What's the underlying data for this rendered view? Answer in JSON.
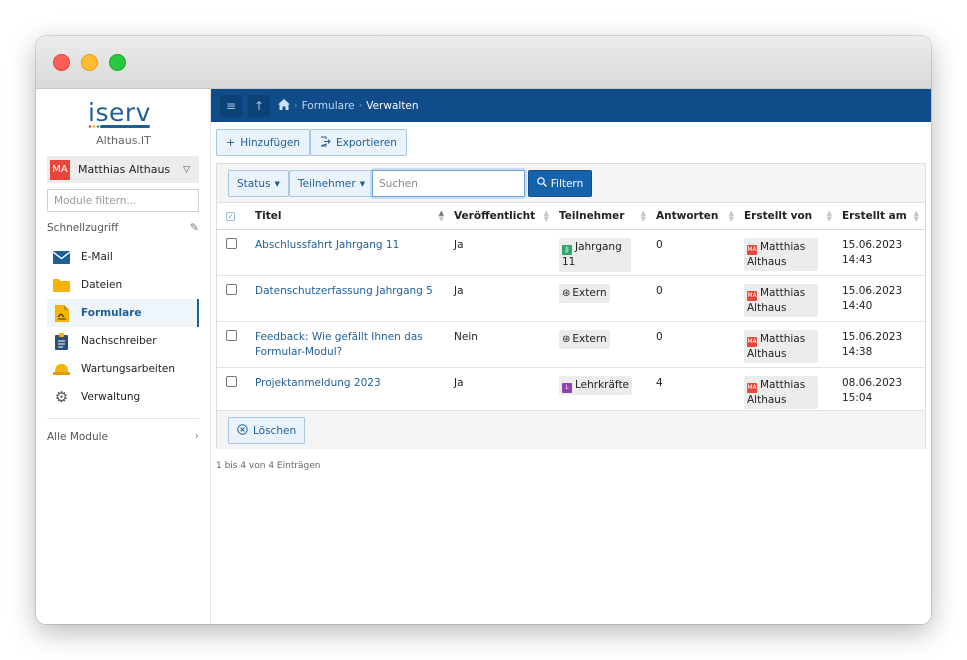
{
  "window": {
    "controls": [
      "close",
      "minimize",
      "maximize"
    ]
  },
  "sidebar": {
    "logo_text": "iserv",
    "org": "Althaus.IT",
    "user": {
      "initials": "MA",
      "name": "Matthias Althaus"
    },
    "module_filter_placeholder": "Module filtern...",
    "quick_access_label": "Schnellzugriff",
    "items": [
      {
        "label": "E-Mail",
        "icon": "mail-icon"
      },
      {
        "label": "Dateien",
        "icon": "folder-icon"
      },
      {
        "label": "Formulare",
        "icon": "forms-icon",
        "active": true
      },
      {
        "label": "Nachschreiber",
        "icon": "clipboard-icon"
      },
      {
        "label": "Wartungsarbeiten",
        "icon": "helmet-icon"
      },
      {
        "label": "Verwaltung",
        "icon": "gear-icon"
      }
    ],
    "all_modules_label": "Alle Module"
  },
  "topbar": {
    "breadcrumb": {
      "link": "Formulare",
      "current": "Verwalten"
    }
  },
  "toolbar": {
    "add_label": "Hinzufügen",
    "export_label": "Exportieren"
  },
  "filters": {
    "status_label": "Status",
    "participants_label": "Teilnehmer",
    "search_placeholder": "Suchen",
    "filter_label": "Filtern"
  },
  "table": {
    "columns": [
      "Titel",
      "Veröffentlicht",
      "Teilnehmer",
      "Antworten",
      "Erstellt von",
      "Erstellt am"
    ],
    "rows": [
      {
        "title": "Abschlussfahrt Jahrgang 11",
        "published": "Ja",
        "participants": "Jahrgang 11",
        "participants_type": "group",
        "answers": "0",
        "author": "Matthias Althaus",
        "author_initials": "MA",
        "date": "15.06.2023",
        "time": "14:43"
      },
      {
        "title": "Datenschutzerfassung Jahrgang 5",
        "published": "Ja",
        "participants": "Extern",
        "participants_type": "extern",
        "answers": "0",
        "author": "Matthias Althaus",
        "author_initials": "MA",
        "date": "15.06.2023",
        "time": "14:40"
      },
      {
        "title": "Feedback: Wie gefällt Ihnen das Formular-Modul?",
        "published": "Nein",
        "participants": "Extern",
        "participants_type": "extern",
        "answers": "0",
        "author": "Matthias Althaus",
        "author_initials": "MA",
        "date": "15.06.2023",
        "time": "14:38"
      },
      {
        "title": "Projektanmeldung 2023",
        "published": "Ja",
        "participants": "Lehrkräfte",
        "participants_type": "teacher",
        "answers": "4",
        "author": "Matthias Althaus",
        "author_initials": "MA",
        "date": "08.06.2023",
        "time": "15:04"
      }
    ]
  },
  "delete_label": "Löschen",
  "info_text": "1 bis 4 von 4 Einträgen",
  "colors": {
    "accent": "#1f5f99",
    "topbar": "#0f4c89",
    "primary_button": "#1562ad"
  }
}
